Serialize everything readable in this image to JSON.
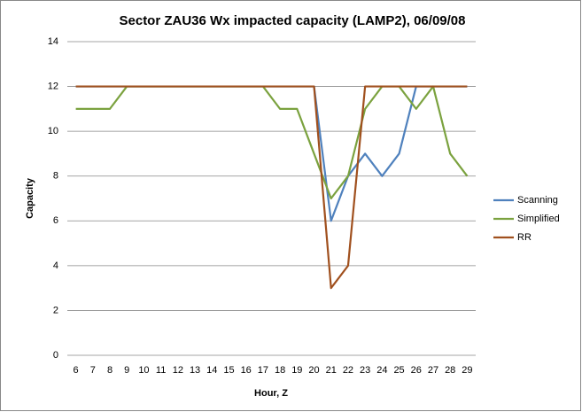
{
  "chart_data": {
    "type": "line",
    "title": "Sector ZAU36 Wx impacted capacity (LAMP2), 06/09/08",
    "x_label": "Hour, Z",
    "y_label": "Capacity",
    "categories": [
      6,
      7,
      8,
      9,
      10,
      11,
      12,
      13,
      14,
      15,
      16,
      17,
      18,
      19,
      20,
      21,
      22,
      23,
      24,
      25,
      26,
      27,
      28,
      29
    ],
    "series": [
      {
        "name": "Scanning",
        "color": "#4f81bd",
        "values": [
          12,
          12,
          12,
          12,
          12,
          12,
          12,
          12,
          12,
          12,
          12,
          12,
          12,
          12,
          12,
          6,
          8,
          9,
          8,
          9,
          12,
          12,
          12,
          12
        ]
      },
      {
        "name": "Simplified",
        "color": "#7ba23f",
        "values": [
          11,
          11,
          11,
          12,
          12,
          12,
          12,
          12,
          12,
          12,
          12,
          12,
          11,
          11,
          9,
          7,
          8,
          11,
          12,
          12,
          11,
          12,
          9,
          8
        ]
      },
      {
        "name": "RR",
        "color": "#a0501e",
        "values": [
          12,
          12,
          12,
          12,
          12,
          12,
          12,
          12,
          12,
          12,
          12,
          12,
          12,
          12,
          12,
          3,
          4,
          12,
          12,
          12,
          12,
          12,
          12,
          12
        ]
      }
    ],
    "ylim": [
      0,
      14
    ],
    "yticks": [
      0,
      2,
      4,
      6,
      8,
      10,
      12,
      14
    ],
    "grid": true,
    "legend": "right"
  }
}
